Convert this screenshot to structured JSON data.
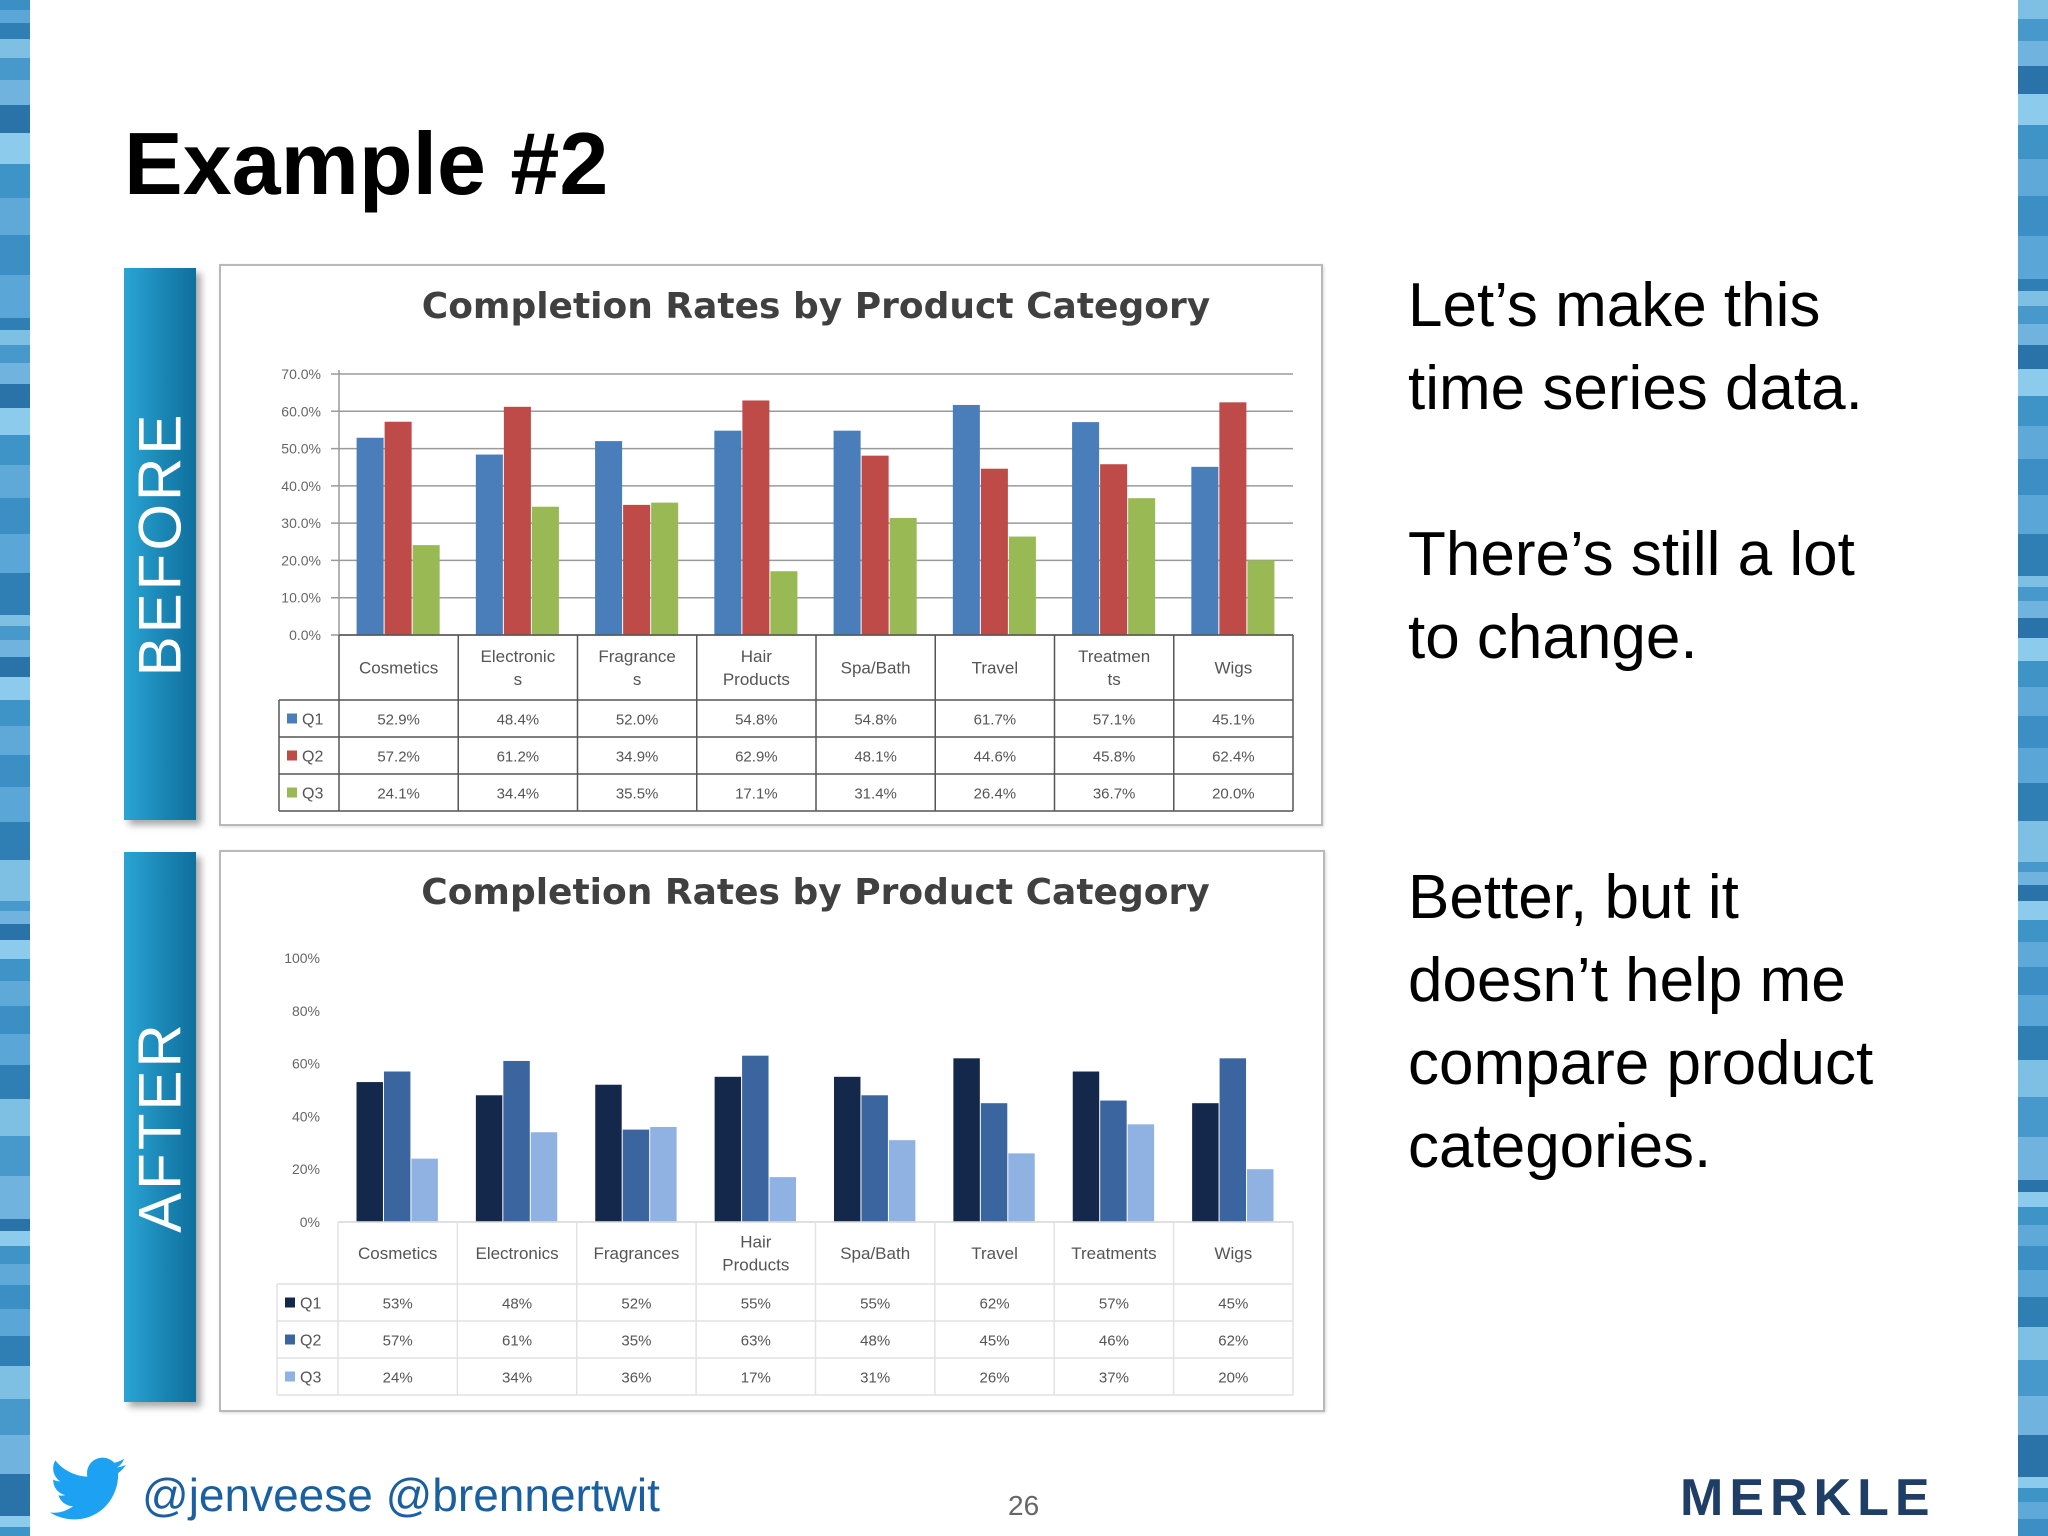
{
  "slide": {
    "title": "Example #2",
    "before_label": "BEFORE",
    "after_label": "AFTER",
    "note_before": [
      "Let’s make this",
      "time series data.",
      "",
      "There’s still a lot",
      "to change."
    ],
    "note_after": [
      "Better, but it",
      "doesn’t help me",
      "compare product",
      "categories."
    ],
    "handles": "@jenveese @brennertwit",
    "page_number": "26",
    "logo_text": "MERKLE",
    "accent_color": "#1a86b5"
  },
  "chart_data": [
    {
      "type": "bar",
      "title": "Completion Rates by Product Category",
      "categories": [
        "Cosmetics",
        "Electronics",
        "Fragrances",
        "Hair Products",
        "Spa/Bath",
        "Travel",
        "Treatments",
        "Wigs"
      ],
      "category_tick_labels": [
        [
          "Cosmetics"
        ],
        [
          "Electronic",
          "s"
        ],
        [
          "Fragrance",
          "s"
        ],
        [
          "Hair",
          "Products"
        ],
        [
          "Spa/Bath"
        ],
        [
          "Travel"
        ],
        [
          "Treatmen",
          "ts"
        ],
        [
          "Wigs"
        ]
      ],
      "series": [
        {
          "name": "Q1",
          "color": "#4a7ebb",
          "values": [
            52.9,
            48.4,
            52.0,
            54.8,
            54.8,
            61.7,
            57.1,
            45.1
          ],
          "labels": [
            "52.9%",
            "48.4%",
            "52.0%",
            "54.8%",
            "54.8%",
            "61.7%",
            "57.1%",
            "45.1%"
          ]
        },
        {
          "name": "Q2",
          "color": "#be4b48",
          "values": [
            57.2,
            61.2,
            34.9,
            62.9,
            48.1,
            44.6,
            45.8,
            62.4
          ],
          "labels": [
            "57.2%",
            "61.2%",
            "34.9%",
            "62.9%",
            "48.1%",
            "44.6%",
            "45.8%",
            "62.4%"
          ]
        },
        {
          "name": "Q3",
          "color": "#98b954",
          "values": [
            24.1,
            34.4,
            35.5,
            17.1,
            31.4,
            26.4,
            36.7,
            20.0
          ],
          "labels": [
            "24.1%",
            "34.4%",
            "35.5%",
            "17.1%",
            "31.4%",
            "26.4%",
            "36.7%",
            "20.0%"
          ]
        }
      ],
      "y_ticks": [
        "0.0%",
        "10.0%",
        "20.0%",
        "30.0%",
        "40.0%",
        "50.0%",
        "60.0%",
        "70.0%"
      ],
      "ylim": [
        0,
        70
      ],
      "grid": true,
      "legend": "data-table"
    },
    {
      "type": "bar",
      "title": "Completion Rates by Product Category",
      "categories": [
        "Cosmetics",
        "Electronics",
        "Fragrances",
        "Hair Products",
        "Spa/Bath",
        "Travel",
        "Treatments",
        "Wigs"
      ],
      "category_tick_labels": [
        [
          "Cosmetics"
        ],
        [
          "Electronics"
        ],
        [
          "Fragrances"
        ],
        [
          "Hair",
          "Products"
        ],
        [
          "Spa/Bath"
        ],
        [
          "Travel"
        ],
        [
          "Treatments"
        ],
        [
          "Wigs"
        ]
      ],
      "series": [
        {
          "name": "Q1",
          "color": "#14284b",
          "values": [
            53,
            48,
            52,
            55,
            55,
            62,
            57,
            45
          ],
          "labels": [
            "53%",
            "48%",
            "52%",
            "55%",
            "55%",
            "62%",
            "57%",
            "45%"
          ]
        },
        {
          "name": "Q2",
          "color": "#3b659e",
          "values": [
            57,
            61,
            35,
            63,
            48,
            45,
            46,
            62
          ],
          "labels": [
            "57%",
            "61%",
            "35%",
            "63%",
            "48%",
            "45%",
            "46%",
            "62%"
          ]
        },
        {
          "name": "Q3",
          "color": "#8fb2e2",
          "values": [
            24,
            34,
            36,
            17,
            31,
            26,
            37,
            20
          ],
          "labels": [
            "24%",
            "34%",
            "36%",
            "17%",
            "31%",
            "26%",
            "37%",
            "20%"
          ]
        }
      ],
      "y_ticks": [
        "0%",
        "20%",
        "40%",
        "60%",
        "80%",
        "100%"
      ],
      "ylim": [
        0,
        100
      ],
      "grid": false,
      "legend": "data-table"
    }
  ]
}
